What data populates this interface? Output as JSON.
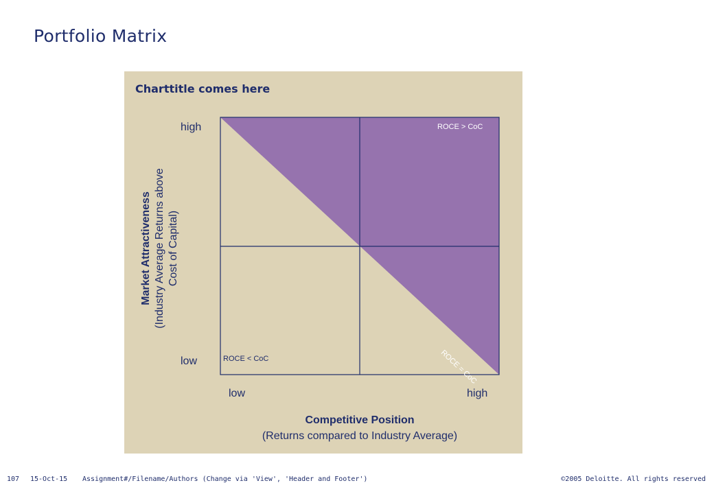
{
  "slide": {
    "title": "Portfolio Matrix"
  },
  "chart": {
    "title": "Charttitle comes here",
    "y_axis": {
      "title_bold": "Market Attractiveness",
      "title_line2": "(Industry Average Returns above",
      "title_line3": "Cost of Capital)",
      "tick_high": "high",
      "tick_low": "low"
    },
    "x_axis": {
      "title_bold": "Competitive Position",
      "title_line2": "(Returns compared to Industry Average)",
      "tick_low": "low",
      "tick_high": "high"
    },
    "zones": {
      "upper": "ROCE > CoC",
      "lower": "ROCE < CoC",
      "diagonal": "ROCE = CoC"
    },
    "colors": {
      "panel": "#ddd3b6",
      "value_zone": "#9673ae",
      "lines": "#1f2d6b",
      "text": "#1f2d6b"
    }
  },
  "footer": {
    "page_number": "107",
    "date": "15-Oct-15",
    "path": "Assignment#/Filename/Authors (Change via 'View', 'Header and Footer')",
    "copyright": "©2005 Deloitte. All rights reserved"
  }
}
